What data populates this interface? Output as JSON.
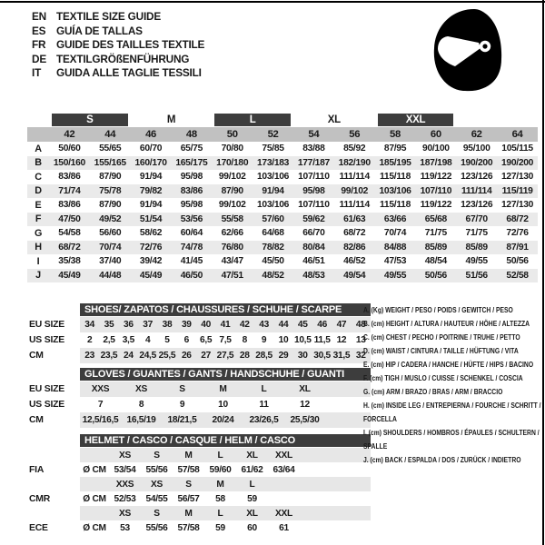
{
  "header": {
    "languages": [
      {
        "code": "EN",
        "title": "TEXTILE SIZE GUIDE"
      },
      {
        "code": "ES",
        "title": "GUÍA DE TALLAS"
      },
      {
        "code": "FR",
        "title": "GUIDE DES TAILLES TEXTILE"
      },
      {
        "code": "DE",
        "title": "TEXTILGRÖßENFÜHRUNG"
      },
      {
        "code": "IT",
        "title": "GUIDA ALLE TAGLIE TESSILI"
      }
    ]
  },
  "icons": {
    "helmet": "racing-helmet-icon"
  },
  "colors": {
    "dark_bar": "#3d3d3d",
    "size_strip": "#c1c1c1",
    "alt_row": "#eaeaea",
    "sub_row": "#e7e7e7",
    "text": "#1a1a1a"
  },
  "main_table": {
    "size_groups": [
      {
        "label": "S",
        "dark": true
      },
      {
        "label": "M",
        "dark": false
      },
      {
        "label": "L",
        "dark": true
      },
      {
        "label": "XL",
        "dark": false
      },
      {
        "label": "XXL",
        "dark": true
      }
    ],
    "sizes": [
      "42",
      "44",
      "46",
      "48",
      "50",
      "52",
      "54",
      "56",
      "58",
      "60",
      "62",
      "64"
    ],
    "rows": [
      {
        "label": "A",
        "values": [
          "50/60",
          "55/65",
          "60/70",
          "65/75",
          "70/80",
          "75/85",
          "83/88",
          "85/92",
          "87/95",
          "90/100",
          "95/100",
          "105/115"
        ]
      },
      {
        "label": "B",
        "values": [
          "150/160",
          "155/165",
          "160/170",
          "165/175",
          "170/180",
          "173/183",
          "177/187",
          "182/190",
          "185/195",
          "187/198",
          "190/200",
          "190/200"
        ]
      },
      {
        "label": "C",
        "values": [
          "83/86",
          "87/90",
          "91/94",
          "95/98",
          "99/102",
          "103/106",
          "107/110",
          "111/114",
          "115/118",
          "119/122",
          "123/126",
          "127/130"
        ]
      },
      {
        "label": "D",
        "values": [
          "71/74",
          "75/78",
          "79/82",
          "83/86",
          "87/90",
          "91/94",
          "95/98",
          "99/102",
          "103/106",
          "107/110",
          "111/114",
          "115/119"
        ]
      },
      {
        "label": "E",
        "values": [
          "83/86",
          "87/90",
          "91/94",
          "95/98",
          "99/102",
          "103/106",
          "107/110",
          "111/114",
          "115/118",
          "119/122",
          "123/126",
          "127/130"
        ]
      },
      {
        "label": "F",
        "values": [
          "47/50",
          "49/52",
          "51/54",
          "53/56",
          "55/58",
          "57/60",
          "59/62",
          "61/63",
          "63/66",
          "65/68",
          "67/70",
          "68/72"
        ]
      },
      {
        "label": "G",
        "values": [
          "54/58",
          "56/60",
          "58/62",
          "60/64",
          "62/66",
          "64/68",
          "66/70",
          "68/72",
          "70/74",
          "71/75",
          "71/75",
          "72/76"
        ]
      },
      {
        "label": "H",
        "values": [
          "68/72",
          "70/74",
          "72/76",
          "74/78",
          "76/80",
          "78/82",
          "80/84",
          "82/86",
          "84/88",
          "85/89",
          "85/89",
          "87/91"
        ]
      },
      {
        "label": "I",
        "values": [
          "35/38",
          "37/40",
          "39/42",
          "41/45",
          "43/47",
          "45/50",
          "46/51",
          "46/52",
          "47/53",
          "48/54",
          "49/55",
          "50/56"
        ]
      },
      {
        "label": "J",
        "values": [
          "45/49",
          "44/48",
          "45/49",
          "46/50",
          "47/51",
          "48/52",
          "48/53",
          "49/54",
          "49/55",
          "50/56",
          "51/56",
          "52/58"
        ]
      }
    ]
  },
  "shoes_table": {
    "title": "SHOES/ ZAPATOS / CHAUSSURES / SCHUHE / SCARPE",
    "rows": [
      {
        "label": "EU SIZE",
        "gray": true,
        "values": [
          "34",
          "35",
          "36",
          "37",
          "38",
          "39",
          "40",
          "41",
          "42",
          "43",
          "44",
          "45",
          "46",
          "47",
          "48"
        ]
      },
      {
        "label": "US SIZE",
        "gray": false,
        "values": [
          "2",
          "2,5",
          "3,5",
          "4",
          "5",
          "6",
          "6,5",
          "7,5",
          "8",
          "9",
          "10",
          "10,5",
          "11,5",
          "12",
          "13"
        ]
      },
      {
        "label": "CM",
        "gray": true,
        "values": [
          "23",
          "23,5",
          "24",
          "24,5",
          "25,5",
          "26",
          "27",
          "27,5",
          "28",
          "28,5",
          "29",
          "30",
          "30,5",
          "31,5",
          "32"
        ]
      }
    ]
  },
  "gloves_table": {
    "title": "GLOVES / GUANTES / GANTS / HANDSCHUHE / GUANTI",
    "rows": [
      {
        "label": "EU SIZE",
        "gray": true,
        "values": [
          "XXS",
          "XS",
          "S",
          "M",
          "L",
          "XL"
        ]
      },
      {
        "label": "US SIZE",
        "gray": false,
        "values": [
          "7",
          "8",
          "9",
          "10",
          "11",
          "12"
        ]
      },
      {
        "label": "CM",
        "gray": true,
        "cm": true,
        "values": [
          "12,5/16,5",
          "16,5/19",
          "18/21,5",
          "20/24",
          "23/26,5",
          "25,5/30"
        ]
      }
    ]
  },
  "helmet_table": {
    "title": "HELMET / CASCO / CASQUE / HELM / CASCO",
    "unit": "Ø CM",
    "groups": [
      {
        "label": "FIA",
        "sizes": [
          "XS",
          "S",
          "M",
          "L",
          "XL",
          "XXL"
        ],
        "values": [
          "53/54",
          "55/56",
          "57/58",
          "59/60",
          "61/62",
          "63/64"
        ]
      },
      {
        "label": "CMR",
        "sizes": [
          "XXS",
          "XS",
          "S",
          "M",
          "L"
        ],
        "values": [
          "52/53",
          "54/55",
          "56/57",
          "58",
          "59"
        ]
      },
      {
        "label": "ECE",
        "sizes": [
          "XS",
          "S",
          "M",
          "L",
          "XL",
          "XXL"
        ],
        "values": [
          "53",
          "55/56",
          "57/58",
          "59",
          "60",
          "61"
        ]
      }
    ]
  },
  "legend": {
    "items": [
      "A. (Kg) WEIGHT / PESO / POIDS / GEWITCH / PESO",
      "B. (cm) HEIGHT / ALTURA / HAUTEUR / HÖHE / ALTEZZA",
      "C. (cm) CHEST / PECHO / POITRINE / TRUHE / PETTO",
      "D. (cm) WAIST / CINTURA / TAILLE / HÜFTUNG / VITA",
      "E. (cm) HIP / CADERA / HANCHE / HÜFTE / HIPS / BACINO",
      "F. (cm) TIGH / MUSLO / CUISSE / SCHENKEL / COSCIA",
      "G. (cm) ARM / BRAZO / BRAS / ARM / BRACCIO",
      "H. (cm) INSIDE LEG / ENTREPIERNA / FOURCHE / SCHRITT / FORCELLA",
      "I. (cm) SHOULDERS / HOMBROS / ÉPAULES / SCHULTERN / SPALLE",
      "J. (cm) BACK / ESPALDA / DOS / ZURÜCK / INDIETRO"
    ]
  }
}
